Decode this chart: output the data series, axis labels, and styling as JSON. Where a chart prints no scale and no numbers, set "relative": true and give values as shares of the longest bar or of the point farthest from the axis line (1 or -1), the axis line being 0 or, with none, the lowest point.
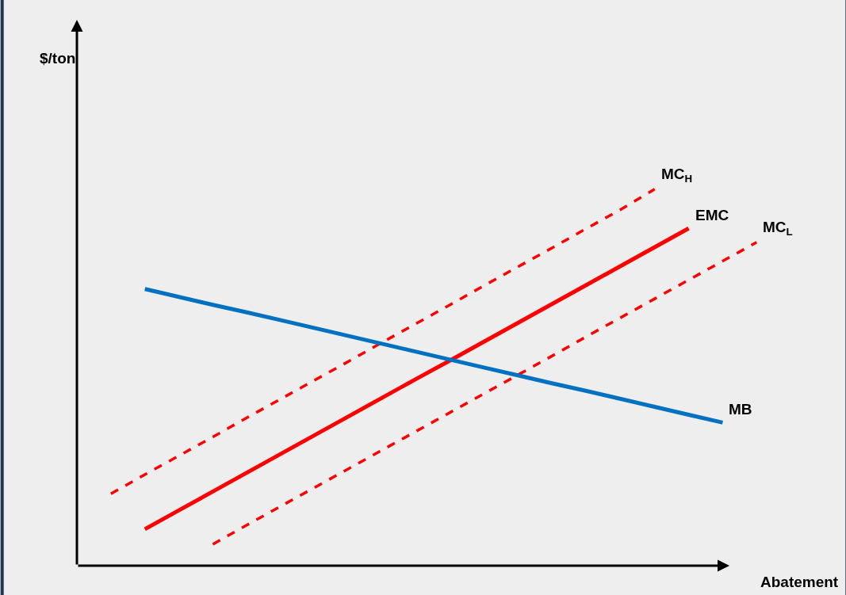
{
  "chart_data": {
    "type": "line",
    "relative": true,
    "xlabel": "Abatement",
    "annotations": [
      "$/ton"
    ],
    "legend": false,
    "grid": false,
    "marker": "none",
    "categories": [
      null,
      null,
      null,
      null,
      null,
      null,
      null,
      null,
      null,
      null,
      null,
      null,
      null,
      null,
      null,
      null,
      null,
      null,
      null,
      null,
      null
    ],
    "series": [
      {
        "name": "MC$_{H}$",
        "color": "#ff0000",
        "line_style": "dashed",
        "values": [
          null,
          0.191,
          0.242,
          0.292,
          0.342,
          0.393,
          0.443,
          0.493,
          0.543,
          0.594,
          0.644,
          0.694,
          0.745,
          0.795,
          0.845,
          0.896,
          0.946,
          1.0,
          null,
          null,
          null
        ]
      },
      {
        "name": "EMC",
        "color": "#ff0000",
        "line_style": "solid",
        "values": [
          null,
          null,
          0.097,
          0.147,
          0.197,
          0.247,
          0.297,
          0.347,
          0.397,
          0.447,
          0.497,
          0.546,
          0.596,
          0.646,
          0.696,
          0.746,
          0.796,
          0.846,
          0.896,
          null,
          null
        ]
      },
      {
        "name": "MC$_{L}$",
        "color": "#ff0000",
        "line_style": "dashed",
        "values": [
          null,
          null,
          null,
          null,
          0.057,
          0.108,
          0.158,
          0.208,
          0.258,
          0.308,
          0.358,
          0.408,
          0.458,
          0.508,
          0.558,
          0.609,
          0.659,
          0.709,
          0.759,
          0.809,
          0.859
        ]
      },
      {
        "name": "MB",
        "color": "#0070c0",
        "line_style": "solid",
        "values": [
          null,
          null,
          0.735,
          0.714,
          0.693,
          0.673,
          0.652,
          0.631,
          0.61,
          0.589,
          0.568,
          0.547,
          0.526,
          0.505,
          0.484,
          0.464,
          0.443,
          0.422,
          0.401,
          0.38,
          null
        ]
      }
    ]
  }
}
